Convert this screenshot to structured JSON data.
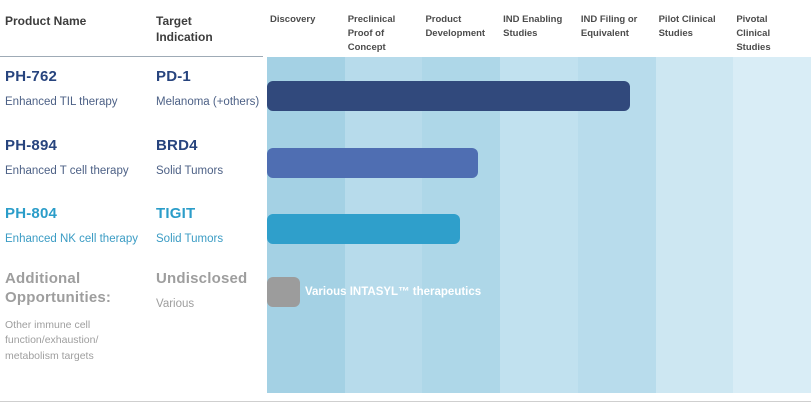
{
  "header": {
    "product_name": "Product Name",
    "target_indication": "Target Indication"
  },
  "chart_data": {
    "type": "bar",
    "orientation": "horizontal-progress",
    "x_axis": "development stage",
    "stages": [
      {
        "label": "Discovery",
        "band_color": "#a4d1e4"
      },
      {
        "label": "Preclinical Proof of Concept",
        "band_color": "#b7dbeb"
      },
      {
        "label": "Product Development",
        "band_color": "#aed7e8"
      },
      {
        "label": "IND Enabling Studies",
        "band_color": "#c1e1ef"
      },
      {
        "label": "IND Filing or Equivalent",
        "band_color": "#b8dcec"
      },
      {
        "label": "Pilot Clinical Studies",
        "band_color": "#cde7f2"
      },
      {
        "label": "Pivotal Clinical Studies",
        "band_color": "#d9edf6"
      }
    ],
    "series": [
      {
        "product": "PH-762",
        "product_desc": "Enhanced TIL therapy",
        "target": "PD-1",
        "indication": "Melanoma (+others)",
        "stage_reached": "IND Filing or Equivalent",
        "progress_stage_units": 4.7,
        "bar_color": "#31497c",
        "bar_width": "66.7%",
        "bar_label": ""
      },
      {
        "product": "PH-894",
        "product_desc": "Enhanced T cell therapy",
        "target": "BRD4",
        "indication": "Solid Tumors",
        "stage_reached": "Product Development",
        "progress_stage_units": 2.7,
        "bar_color": "#4f6eb2",
        "bar_width": "38.8%",
        "bar_label": ""
      },
      {
        "product": "PH-804",
        "product_desc": "Enhanced NK cell therapy",
        "target": "TIGIT",
        "indication": "Solid Tumors",
        "stage_reached": "Product Development",
        "progress_stage_units": 2.5,
        "bar_color": "#2f9fcb",
        "bar_width": "35.5%",
        "bar_label": ""
      },
      {
        "product": "Additional Opportunities:",
        "product_desc": "Other immune cell function/exhaustion/ metabolism targets",
        "target": "Undisclosed",
        "indication": "Various",
        "stage_reached": "Discovery",
        "progress_stage_units": 0.4,
        "bar_color": "#9c9c9c",
        "bar_width": "6.1%",
        "bar_label": "Various INTASYL™ therapeutics"
      }
    ]
  },
  "colors": {
    "navy_text": "#27447e",
    "cyan_text": "#2b9dc9",
    "gray_text": "#9e9e9e",
    "header_text": "#3d3d3d",
    "stage_header_text": "#4c4c4c",
    "divider": "#9fabb6",
    "bar_navy": "#31497c",
    "bar_blue": "#4f6eb2",
    "bar_cyan": "#2f9fcb",
    "bar_gray": "#9c9c9c"
  }
}
